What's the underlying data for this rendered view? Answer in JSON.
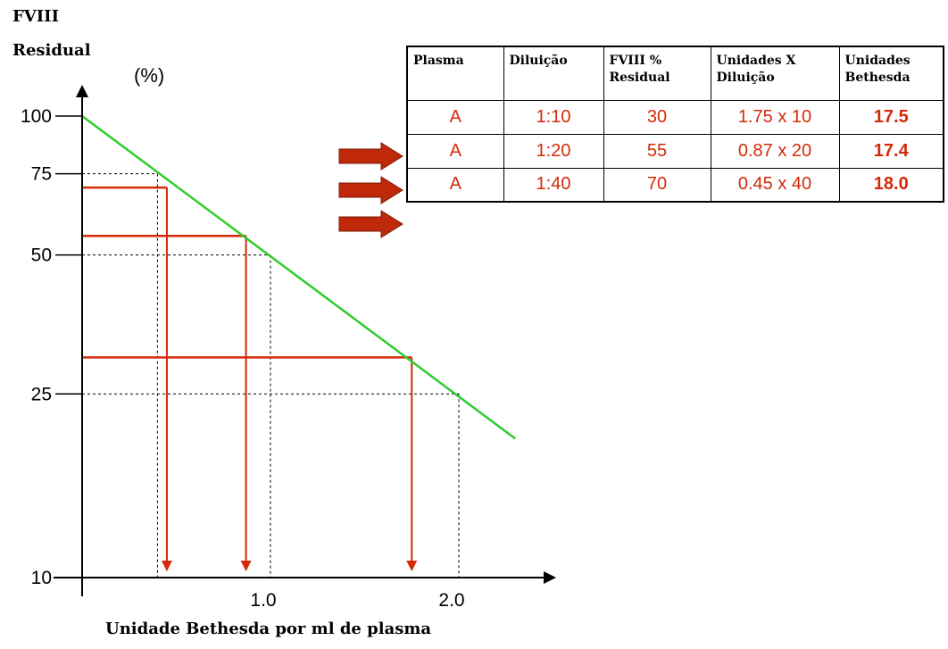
{
  "chart_data": {
    "type": "line",
    "y_title_line1": "FVIII",
    "y_title_line2": "Residual",
    "y_unit": "(%)",
    "xlabel": "Unidade Bethesda por ml de plasma",
    "x_ticks": [
      {
        "value": 1.0,
        "label": "1.0"
      },
      {
        "value": 2.0,
        "label": "2.0"
      }
    ],
    "y_ticks": [
      {
        "value": 100,
        "label": "100"
      },
      {
        "value": 75,
        "label": "75"
      },
      {
        "value": 50,
        "label": "50"
      },
      {
        "value": 25,
        "label": "25"
      },
      {
        "value": 10,
        "label": "10"
      }
    ],
    "y_scale": "log",
    "xlim": [
      0,
      2.3
    ],
    "series": [
      {
        "color": "#2ecc2e",
        "x": [
          0,
          2.3
        ],
        "y": [
          100,
          20
        ]
      }
    ],
    "reference_lines": [
      {
        "x": 0.4,
        "y": 75,
        "style": "dashed"
      },
      {
        "x": 1.0,
        "y": 50,
        "style": "dashed"
      },
      {
        "x": 2.0,
        "y": 25,
        "style": "dashed"
      }
    ],
    "readings": [
      {
        "residual_pct": 70,
        "bethesda": 0.45,
        "color": "#d42a0a"
      },
      {
        "residual_pct": 55,
        "bethesda": 0.87,
        "color": "#d42a0a"
      },
      {
        "residual_pct": 30,
        "bethesda": 1.75,
        "color": "#d42a0a"
      }
    ]
  },
  "table": {
    "headers": [
      "Plasma",
      "Diluição",
      "FVIII % Residual",
      "Unidades X Diluição",
      "Unidades Bethesda"
    ],
    "header_lines": [
      [
        "Plasma"
      ],
      [
        "Diluição"
      ],
      [
        "FVIII %",
        "Residual"
      ],
      [
        "Unidades X",
        "Diluição"
      ],
      [
        "Unidades",
        "Bethesda"
      ]
    ],
    "rows": [
      [
        "A",
        "1:10",
        "30",
        "1.75 x 10",
        "17.5"
      ],
      [
        "A",
        "1:20",
        "55",
        "0.87 x 20",
        "17.4"
      ],
      [
        "A",
        "1:40",
        "70",
        "0.45 x 40",
        "18.0"
      ]
    ],
    "arrow_color": "#c0280a"
  }
}
